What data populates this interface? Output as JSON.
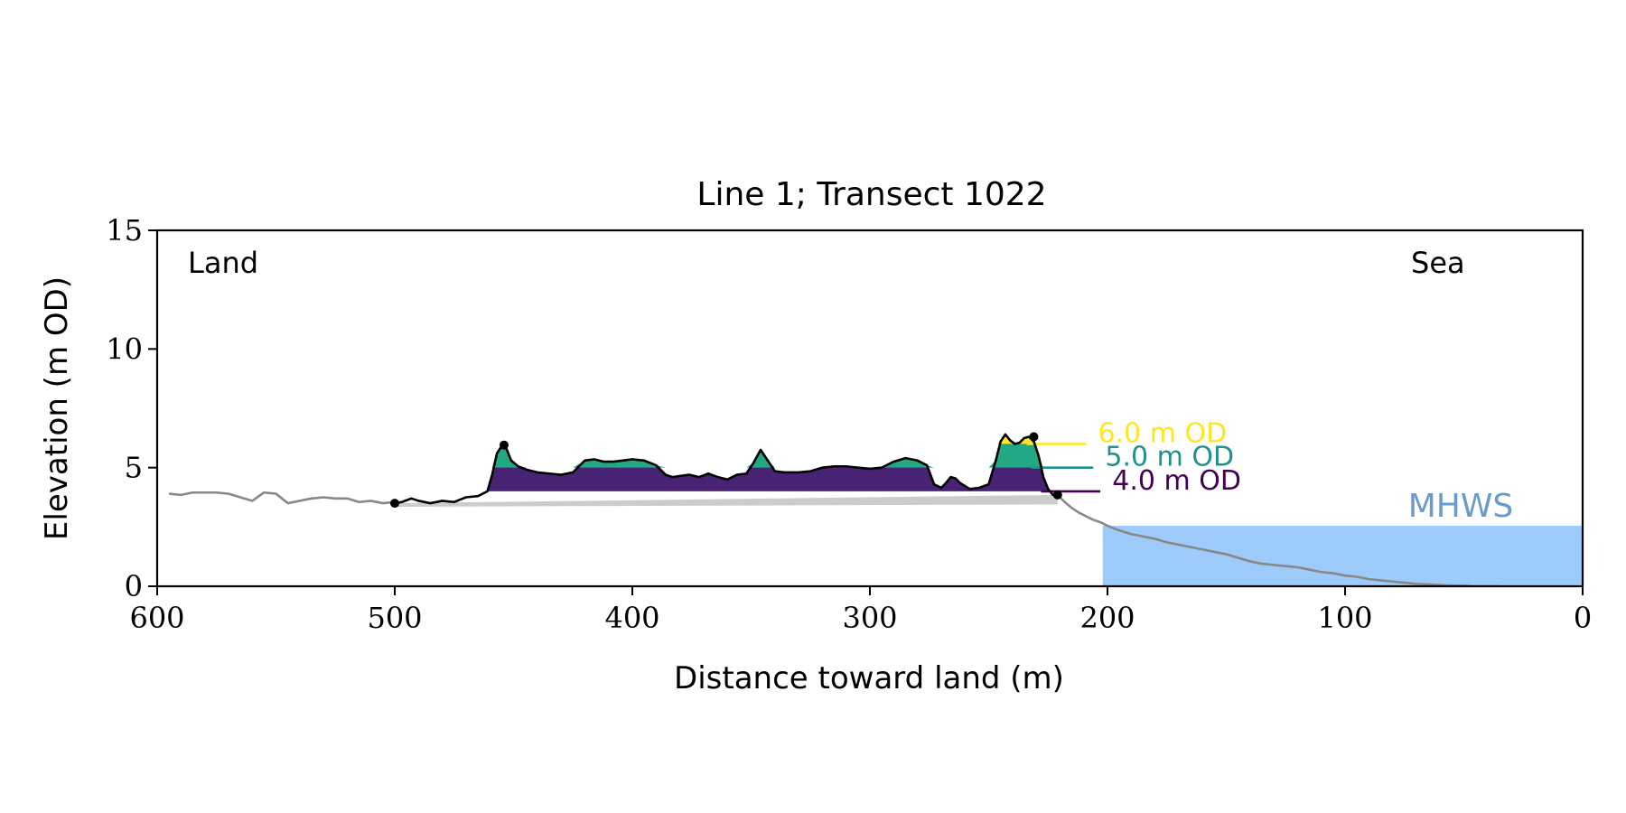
{
  "chart_data": {
    "type": "area",
    "title": "Line 1; Transect 1022",
    "xlabel": "Distance toward land (m)",
    "ylabel": "Elevation (m OD)",
    "xlim": [
      600,
      0
    ],
    "ylim": [
      0,
      15
    ],
    "x_ticks": [
      600,
      500,
      400,
      300,
      200,
      100,
      0
    ],
    "y_ticks": [
      0,
      5,
      10,
      15
    ],
    "x_tick_labels": [
      "600",
      "500",
      "400",
      "300",
      "200",
      "100",
      "0"
    ],
    "y_tick_labels": [
      "0",
      "5",
      "10",
      "15"
    ],
    "grid": false,
    "annotations": {
      "land": "Land",
      "sea": "Sea",
      "mhws": "MHWS"
    },
    "mhws": {
      "elevation": 2.55,
      "x_from": 202,
      "x_to": 0,
      "color": "#9ccbfc",
      "label_color": "#6b9bc9"
    },
    "levels": [
      {
        "label": "4.0 m OD",
        "elevation": 4.0,
        "color": "#440154",
        "fill": "#482373",
        "label_x": 198,
        "line_x": [
          228,
          203
        ]
      },
      {
        "label": "5.0 m OD",
        "elevation": 5.0,
        "color": "#21918c",
        "fill": "#22a884",
        "label_x": 201,
        "line_x": [
          232,
          206
        ]
      },
      {
        "label": "6.0 m OD",
        "elevation": 6.0,
        "color": "#fde725",
        "fill": "#fde725",
        "label_x": 204,
        "line_x": [
          234,
          209
        ]
      }
    ],
    "profile_grey": {
      "x": [
        595,
        590,
        585,
        580,
        575,
        570,
        565,
        560,
        555,
        550,
        545,
        540,
        535,
        530,
        525,
        520,
        515,
        510,
        505,
        500,
        221,
        218,
        215,
        212,
        209,
        206,
        203,
        200,
        195,
        190,
        185,
        180,
        175,
        170,
        165,
        160,
        155,
        150,
        145,
        140,
        135,
        130,
        125,
        120,
        115,
        110,
        105,
        100,
        95,
        90,
        85,
        80,
        75,
        70,
        65,
        60,
        55,
        50,
        45,
        40,
        35
      ],
      "y": [
        3.9,
        3.85,
        3.95,
        3.95,
        3.95,
        3.9,
        3.75,
        3.6,
        3.95,
        3.9,
        3.5,
        3.6,
        3.7,
        3.75,
        3.7,
        3.7,
        3.55,
        3.6,
        3.5,
        3.55,
        3.85,
        3.55,
        3.3,
        3.1,
        2.95,
        2.8,
        2.7,
        2.55,
        2.35,
        2.2,
        2.1,
        2.0,
        1.85,
        1.75,
        1.65,
        1.55,
        1.45,
        1.35,
        1.2,
        1.05,
        0.95,
        0.9,
        0.85,
        0.8,
        0.7,
        0.6,
        0.55,
        0.45,
        0.4,
        0.3,
        0.25,
        0.2,
        0.15,
        0.1,
        0.08,
        0.05,
        0.03,
        0.02,
        0.0,
        0.0,
        0.0
      ],
      "color": "#888888"
    },
    "profile_black": {
      "x": [
        500,
        497,
        493,
        490,
        485,
        480,
        475,
        470,
        465,
        461,
        459,
        457,
        455,
        453,
        451,
        448,
        444,
        440,
        435,
        430,
        425,
        420,
        416,
        412,
        408,
        404,
        400,
        395,
        390,
        386,
        383,
        380,
        376,
        372,
        368,
        364,
        360,
        356,
        352,
        349,
        346,
        343,
        340,
        336,
        330,
        325,
        320,
        315,
        310,
        305,
        300,
        295,
        290,
        285,
        280,
        276,
        273,
        270,
        268,
        266,
        264,
        262,
        258,
        254,
        250,
        247,
        245,
        243,
        241,
        239,
        237,
        235,
        233,
        231,
        229,
        227,
        225,
        223,
        221
      ],
      "y": [
        3.5,
        3.55,
        3.7,
        3.6,
        3.5,
        3.6,
        3.55,
        3.75,
        3.8,
        4.0,
        4.7,
        5.6,
        5.9,
        5.8,
        5.3,
        5.05,
        4.9,
        4.8,
        4.75,
        4.7,
        4.8,
        5.3,
        5.35,
        5.25,
        5.25,
        5.3,
        5.35,
        5.3,
        5.1,
        4.7,
        4.6,
        4.65,
        4.7,
        4.6,
        4.75,
        4.6,
        4.5,
        4.7,
        4.75,
        5.2,
        5.75,
        5.3,
        4.85,
        4.8,
        4.8,
        4.85,
        5.0,
        5.05,
        5.05,
        5.0,
        4.95,
        5.0,
        5.25,
        5.4,
        5.3,
        5.1,
        4.3,
        4.15,
        4.35,
        4.6,
        4.55,
        4.35,
        4.1,
        4.15,
        4.3,
        5.3,
        6.1,
        6.4,
        6.15,
        6.0,
        6.05,
        6.25,
        6.3,
        6.1,
        5.5,
        4.6,
        4.1,
        3.85,
        3.85
      ],
      "color": "#000000"
    },
    "markers": [
      {
        "x": 500,
        "y": 3.5
      },
      {
        "x": 454,
        "y": 5.95
      },
      {
        "x": 231,
        "y": 6.3
      },
      {
        "x": 221,
        "y": 3.85
      }
    ],
    "grey_wedge": {
      "color": "#cccccc",
      "points": [
        [
          500,
          3.5
        ],
        [
          221,
          3.85
        ],
        [
          221,
          3.45
        ],
        [
          500,
          3.35
        ]
      ]
    }
  }
}
